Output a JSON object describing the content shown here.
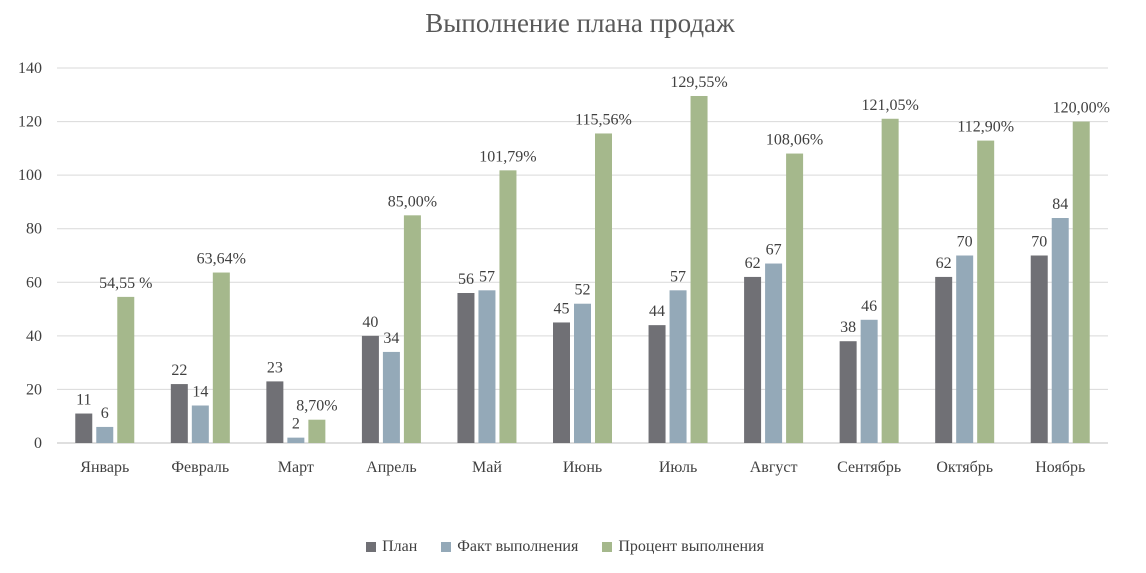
{
  "chart_data": {
    "type": "bar",
    "title": "Выполнение плана продаж",
    "xlabel": "",
    "ylabel": "",
    "ylim": [
      0,
      140
    ],
    "yticks": [
      0,
      20,
      40,
      60,
      80,
      100,
      120,
      140
    ],
    "ytick_labels": [
      "0",
      "20",
      "40",
      "60",
      "80",
      "100",
      "120",
      "140"
    ],
    "grid": true,
    "legend_position": "bottom",
    "categories": [
      "Январь",
      "Февраль",
      "Март",
      "Апрель",
      "Май",
      "Июнь",
      "Июль",
      "Август",
      "Сентябрь",
      "Октябрь",
      "Ноябрь"
    ],
    "series": [
      {
        "name": "План",
        "color": "#707075",
        "values": [
          11,
          22,
          23,
          40,
          56,
          45,
          44,
          62,
          38,
          62,
          70
        ],
        "labels": [
          "11",
          "22",
          "23",
          "40",
          "56",
          "45",
          "44",
          "62",
          "38",
          "62",
          "70"
        ]
      },
      {
        "name": "Факт выполнения",
        "color": "#94a9b8",
        "values": [
          6,
          14,
          2,
          34,
          57,
          52,
          57,
          67,
          46,
          70,
          84
        ],
        "labels": [
          "6",
          "14",
          "2",
          "34",
          "57",
          "52",
          "57",
          "67",
          "46",
          "70",
          "84"
        ]
      },
      {
        "name": "Процент выполнения",
        "color": "#a5b88c",
        "values": [
          54.55,
          63.64,
          8.7,
          85.0,
          101.79,
          115.56,
          129.55,
          108.06,
          121.05,
          112.9,
          120.0
        ],
        "labels": [
          "54,55 %",
          "63,64%",
          "8,70%",
          "85,00%",
          "101,79%",
          "115,56%",
          "129,55%",
          "108,06%",
          "121,05%",
          "112,90%",
          "120,00%"
        ]
      }
    ]
  }
}
